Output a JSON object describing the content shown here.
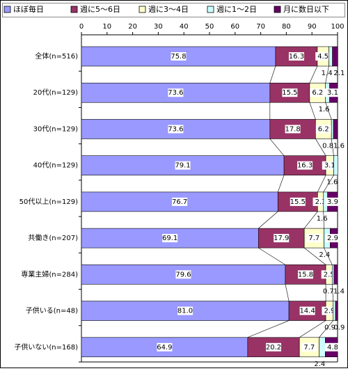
{
  "chart_data": {
    "type": "stacked-bar-horizontal",
    "categories": [
      "全体(n=516)",
      "20代(n=129)",
      "30代(n=129)",
      "40代(n=129)",
      "50代以上(n=129)",
      "共働き(n=207)",
      "専業主婦(n=284)",
      "子供いる(n=48)",
      "子供いない(n=168)"
    ],
    "series": [
      {
        "name": "ほぼ毎日",
        "color": "#9999ff",
        "values": [
          75.8,
          73.6,
          73.6,
          79.1,
          76.7,
          69.1,
          79.6,
          81.0,
          64.9
        ],
        "value_labels": [
          "75.8",
          "73.6",
          "73.6",
          "79.1",
          "76.7",
          "69.1",
          "79.6",
          "81.0",
          "64.9"
        ]
      },
      {
        "name": "週に5～6日",
        "color": "#993366",
        "values": [
          16.3,
          15.5,
          17.8,
          16.3,
          15.5,
          17.9,
          15.8,
          14.4,
          20.2
        ],
        "value_labels": [
          "16.3",
          "15.5",
          "17.8",
          "16.3",
          "15.5",
          "17.9",
          "15.8",
          "14.4",
          "20.2"
        ]
      },
      {
        "name": "週に3～4日",
        "color": "#ffffcc",
        "values": [
          4.5,
          6.2,
          6.2,
          3.1,
          2.3,
          7.7,
          2.5,
          2.9,
          7.7
        ],
        "value_labels": [
          "4.5",
          "6.2",
          "6.2",
          "3.1",
          "2.3",
          "7.7",
          "2.5",
          "2.9",
          "7.7"
        ]
      },
      {
        "name": "週に1～2日",
        "color": "#ccffff",
        "values": [
          1.4,
          1.6,
          0.8,
          1.6,
          1.6,
          2.4,
          0.7,
          0.9,
          2.4
        ],
        "value_labels": [
          "1.4",
          "1.6",
          "0.8",
          "1.6",
          "1.6",
          "2.4",
          "0.7",
          "0.9",
          "2.4"
        ]
      },
      {
        "name": "月に数日以下",
        "color": "#660066",
        "values": [
          2.1,
          3.1,
          1.6,
          0,
          3.9,
          2.9,
          1.4,
          0.9,
          4.8
        ],
        "value_labels": [
          "2.1",
          "3.1",
          "1.6",
          null,
          "3.9",
          "2.9",
          "1.4",
          "0.9",
          "4.8"
        ]
      }
    ],
    "xlim": [
      0,
      100
    ],
    "xticks": [
      0,
      10,
      20,
      30,
      40,
      50,
      60,
      70,
      80,
      90,
      100
    ],
    "legend": "top"
  }
}
